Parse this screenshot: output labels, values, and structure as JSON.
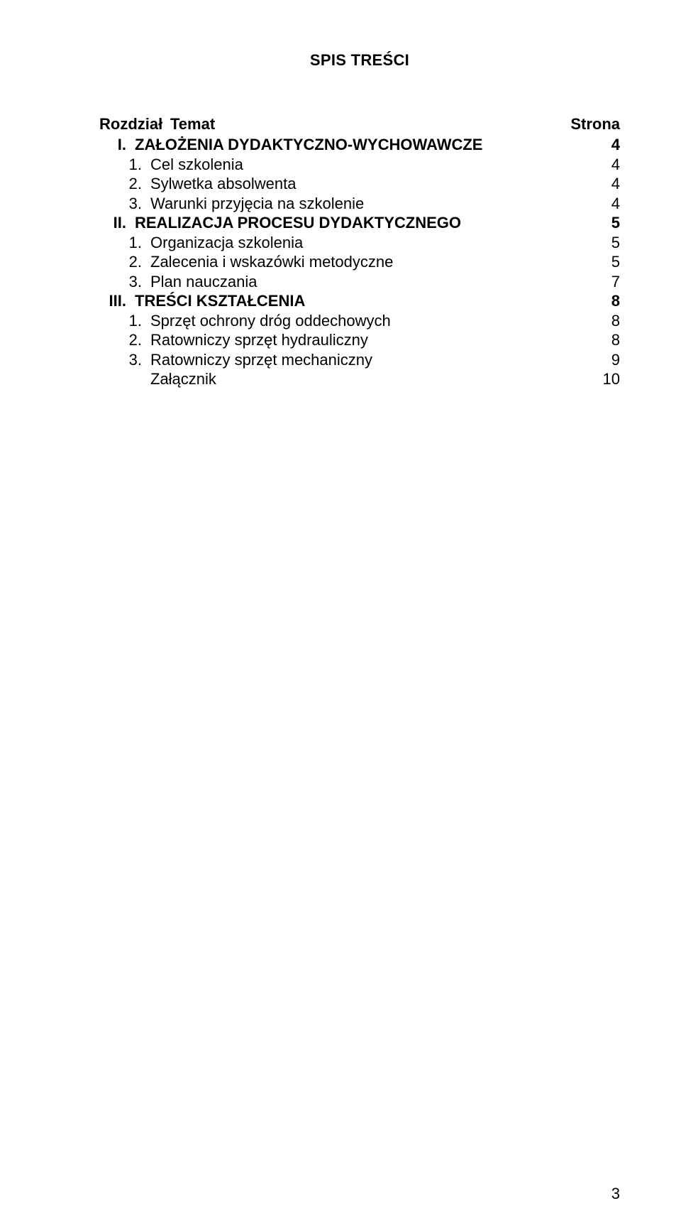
{
  "title": "SPIS TREŚCI",
  "headers": {
    "chapter": "Rozdział",
    "topic": "Temat",
    "page": "Strona"
  },
  "toc": [
    {
      "num": "I.",
      "text": "ZAŁOŻENIA DYDAKTYCZNO-WYCHOWAWCZE",
      "page": "4",
      "bold": true,
      "indent": false
    },
    {
      "num": "1.",
      "text": "Cel szkolenia",
      "page": "4",
      "bold": false,
      "indent": true
    },
    {
      "num": "2.",
      "text": "Sylwetka absolwenta",
      "page": "4",
      "bold": false,
      "indent": true
    },
    {
      "num": "3.",
      "text": "Warunki przyjęcia na szkolenie",
      "page": "4",
      "bold": false,
      "indent": true
    },
    {
      "num": "II.",
      "text": "REALIZACJA PROCESU DYDAKTYCZNEGO",
      "page": "5",
      "bold": true,
      "indent": false
    },
    {
      "num": "1.",
      "text": "Organizacja szkolenia",
      "page": "5",
      "bold": false,
      "indent": true
    },
    {
      "num": "2.",
      "text": "Zalecenia i wskazówki metodyczne",
      "page": "5",
      "bold": false,
      "indent": true
    },
    {
      "num": "3.",
      "text": "Plan nauczania",
      "page": "7",
      "bold": false,
      "indent": true
    },
    {
      "num": "III.",
      "text": "TREŚCI KSZTAŁCENIA",
      "page": "8",
      "bold": true,
      "indent": false
    },
    {
      "num": "1.",
      "text": "Sprzęt ochrony dróg oddechowych",
      "page": "8",
      "bold": false,
      "indent": true
    },
    {
      "num": "2.",
      "text": "Ratowniczy sprzęt hydrauliczny",
      "page": "8",
      "bold": false,
      "indent": true
    },
    {
      "num": "3.",
      "text": "Ratowniczy sprzęt mechaniczny",
      "page": "9",
      "bold": false,
      "indent": true
    },
    {
      "num": "",
      "text": "Załącznik",
      "page": "10",
      "bold": false,
      "indent": true
    }
  ],
  "page_number": "3",
  "style": {
    "background": "#ffffff",
    "text_color": "#000000",
    "font_family": "Arial",
    "title_fontsize": 22,
    "body_fontsize": 22,
    "line_height": 1.25
  }
}
